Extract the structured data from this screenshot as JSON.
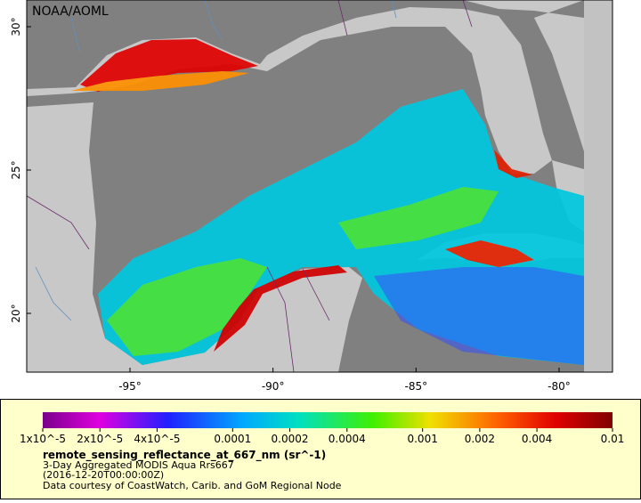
{
  "map": {
    "credit": "NOAA/AOML",
    "lat_ticks": [
      {
        "value": 30,
        "label": "30°"
      },
      {
        "value": 25,
        "label": "25°"
      },
      {
        "value": 20,
        "label": "20°"
      }
    ],
    "lon_ticks": [
      {
        "value": -95,
        "label": "-95°"
      },
      {
        "value": -90,
        "label": "-90°"
      },
      {
        "value": -85,
        "label": "-85°"
      },
      {
        "value": -80,
        "label": "-80°"
      }
    ],
    "colorbar": {
      "log_scale": true,
      "range": [
        1e-05,
        0.01
      ],
      "ticks": [
        {
          "value": 1e-05,
          "label": "1x10^-5"
        },
        {
          "value": 2e-05,
          "label": "2x10^-5"
        },
        {
          "value": 4e-05,
          "label": "4x10^-5"
        },
        {
          "value": 0.0001,
          "label": "0.0001"
        },
        {
          "value": 0.0002,
          "label": "0.0002"
        },
        {
          "value": 0.0004,
          "label": "0.0004"
        },
        {
          "value": 0.001,
          "label": "0.001"
        },
        {
          "value": 0.002,
          "label": "0.002"
        },
        {
          "value": 0.004,
          "label": "0.004"
        },
        {
          "value": 0.01,
          "label": "0.01"
        }
      ]
    },
    "legend": {
      "variable": "remote_sensing_reflectance_at_667_nm (sr^-1)",
      "dataset": "3-Day Aggregated MODIS Aqua Rrs667",
      "time": "(2016-12-20T00:00:00Z)",
      "courtesy": "Data courtesy of CoastWatch, Carib. and GoM Regional Node"
    }
  }
}
